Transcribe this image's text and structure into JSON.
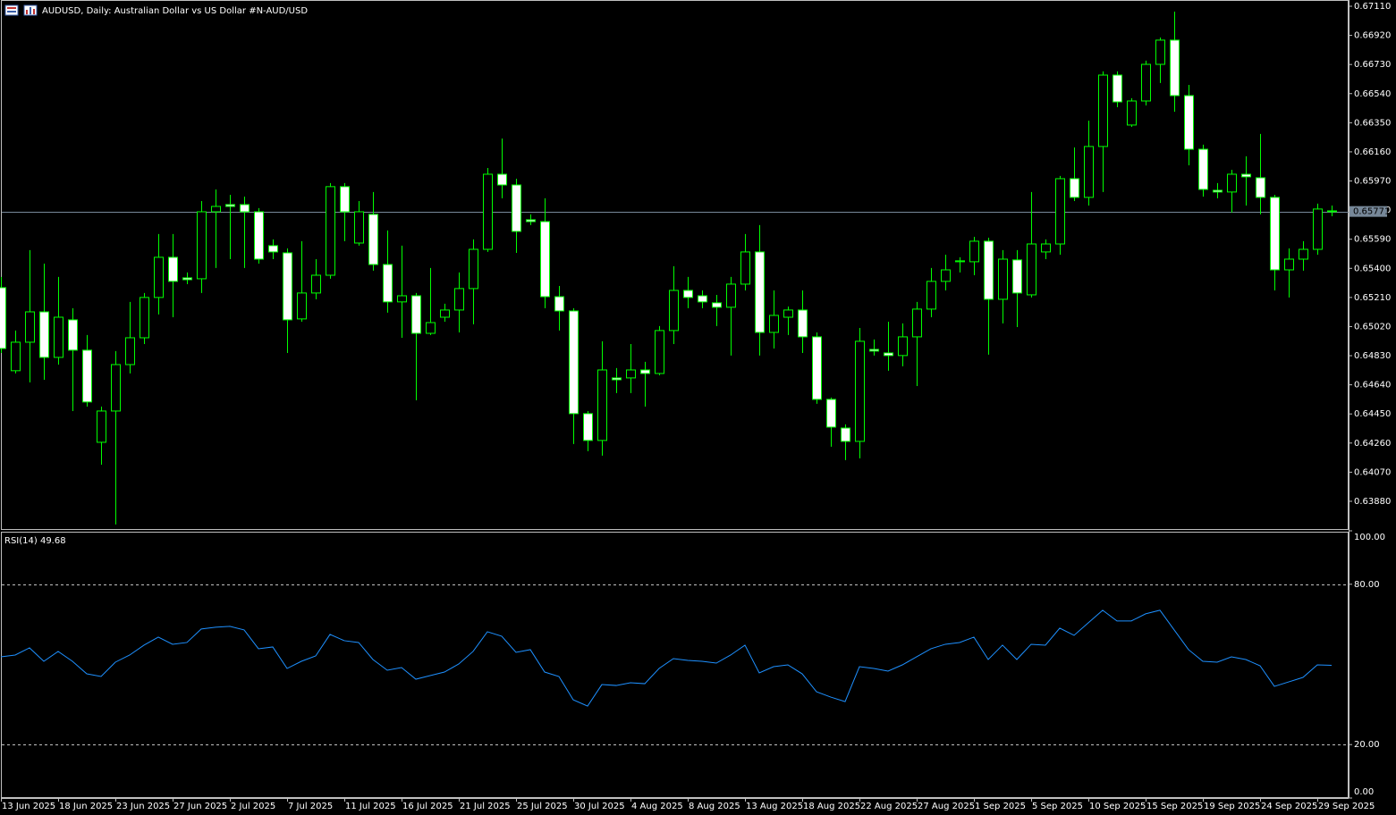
{
  "chart_data": {
    "type": "candlestick",
    "title": "AUDUSD, Daily:  Australian Dollar vs US Dollar #N-AUD/USD",
    "categories": [
      "13 Jun 2025",
      null,
      null,
      null,
      "18 Jun 2025",
      null,
      null,
      null,
      "23 Jun 2025",
      null,
      null,
      null,
      "27 Jun 2025",
      null,
      null,
      null,
      "2 Jul 2025",
      null,
      null,
      null,
      "7 Jul 2025",
      null,
      null,
      null,
      "11 Jul 2025",
      null,
      null,
      null,
      "16 Jul 2025",
      null,
      null,
      null,
      "21 Jul 2025",
      null,
      null,
      null,
      "25 Jul 2025",
      null,
      null,
      null,
      "30 Jul 2025",
      null,
      null,
      null,
      "4 Aug 2025",
      null,
      null,
      null,
      "8 Aug 2025",
      null,
      null,
      null,
      "13 Aug 2025",
      null,
      null,
      null,
      "18 Aug 2025",
      null,
      null,
      null,
      "22 Aug 2025",
      null,
      null,
      null,
      "27 Aug 2025",
      null,
      null,
      null,
      "1 Sep 2025",
      null,
      null,
      null,
      "5 Sep 2025",
      null,
      null,
      null,
      "10 Sep 2025",
      null,
      null,
      null,
      "15 Sep 2025",
      null,
      null,
      null,
      "19 Sep 2025",
      null,
      null,
      null,
      "24 Sep 2025",
      null,
      null,
      null,
      "29 Sep 2025",
      null
    ],
    "open": [
      0.65274,
      0.64732,
      0.64918,
      0.65116,
      0.64819,
      0.65064,
      0.64866,
      0.64265,
      0.64469,
      0.64772,
      0.64947,
      0.6521,
      0.65472,
      0.65338,
      0.65332,
      0.65769,
      0.65816,
      0.65816,
      0.65769,
      0.65548,
      0.65501,
      0.6507,
      0.65239,
      0.65355,
      0.65933,
      0.65565,
      0.65752,
      0.65425,
      0.65181,
      0.65221,
      0.64976,
      0.65081,
      0.65128,
      0.65268,
      0.65524,
      0.66014,
      0.65944,
      0.65717,
      0.65705,
      0.65215,
      0.65122,
      0.64452,
      0.64277,
      0.64685,
      0.64685,
      0.64737,
      0.64714,
      0.64994,
      0.65256,
      0.65221,
      0.65175,
      0.65146,
      0.65297,
      0.65507,
      0.64982,
      0.65081,
      0.65128,
      0.64953,
      0.64545,
      0.64358,
      0.64271,
      0.64871,
      0.64848,
      0.64831,
      0.64953,
      0.65134,
      0.65315,
      0.65443,
      0.65443,
      0.65577,
      0.65198,
      0.65455,
      0.65227,
      0.65507,
      0.65559,
      0.65985,
      0.65863,
      0.66195,
      0.66661,
      0.66335,
      0.66492,
      0.66731,
      0.66889,
      0.66527,
      0.66177,
      0.65909,
      0.65898,
      0.66014,
      0.65991,
      0.65863,
      0.6539,
      0.6546,
      0.65524,
      0.65775
    ],
    "high": [
      0.65344,
      0.64994,
      0.65519,
      0.65431,
      0.65344,
      0.6514,
      0.64965,
      0.64498,
      0.6486,
      0.65181,
      0.65239,
      0.65624,
      0.65624,
      0.65373,
      0.65839,
      0.65915,
      0.6588,
      0.65868,
      0.65793,
      0.65589,
      0.6553,
      0.65577,
      0.6546,
      0.65956,
      0.65956,
      0.65839,
      0.65898,
      0.65647,
      0.65548,
      0.65239,
      0.65402,
      0.65169,
      0.65373,
      0.65589,
      0.66055,
      0.66247,
      0.65985,
      0.65752,
      0.65857,
      0.65285,
      0.6514,
      0.64469,
      0.64924,
      0.64749,
      0.64906,
      0.6479,
      0.65023,
      0.65414,
      0.65344,
      0.65256,
      0.65227,
      0.65344,
      0.65624,
      0.65682,
      0.65256,
      0.65151,
      0.65256,
      0.64982,
      0.64557,
      0.64382,
      0.65011,
      0.64936,
      0.65052,
      0.65041,
      0.65181,
      0.65402,
      0.65489,
      0.65472,
      0.65606,
      0.656,
      0.65519,
      0.65519,
      0.65898,
      0.65589,
      0.66003,
      0.66189,
      0.66364,
      0.66685,
      0.66685,
      0.6651,
      0.66755,
      0.66906,
      0.67075,
      0.66597,
      0.66207,
      0.65956,
      0.66043,
      0.66131,
      0.66277,
      0.6588,
      0.6553,
      0.65577,
      0.65822,
      0.6581
    ],
    "low": [
      0.64848,
      0.64714,
      0.64656,
      0.64673,
      0.64772,
      0.64469,
      0.64498,
      0.64119,
      0.63729,
      0.64714,
      0.64906,
      0.65099,
      0.65081,
      0.65297,
      0.65239,
      0.65402,
      0.6546,
      0.65402,
      0.65431,
      0.6546,
      0.64848,
      0.65052,
      0.65198,
      0.65332,
      0.65577,
      0.65548,
      0.65385,
      0.65111,
      0.64947,
      0.64539,
      0.64965,
      0.65052,
      0.64982,
      0.65035,
      0.65507,
      0.65857,
      0.65501,
      0.65682,
      0.6514,
      0.64994,
      0.64254,
      0.64207,
      0.64178,
      0.64586,
      0.64586,
      0.64498,
      0.64702,
      0.64906,
      0.6514,
      0.6514,
      0.65023,
      0.64831,
      0.65256,
      0.64831,
      0.64877,
      0.64965,
      0.64848,
      0.64516,
      0.64236,
      0.64149,
      0.6416,
      0.64831,
      0.64732,
      0.64761,
      0.64632,
      0.65081,
      0.65256,
      0.65373,
      0.65355,
      0.64837,
      0.65041,
      0.65017,
      0.6521,
      0.6546,
      0.65489,
      0.65839,
      0.6581,
      0.65898,
      0.66451,
      0.66323,
      0.66463,
      0.66609,
      0.66422,
      0.66072,
      0.65868,
      0.65857,
      0.65764,
      0.6581,
      0.65752,
      0.65256,
      0.6521,
      0.65385,
      0.65489,
      0.6574
    ],
    "close": [
      0.64877,
      0.64918,
      0.65116,
      0.64819,
      0.65081,
      0.64866,
      0.64528,
      0.64469,
      0.64772,
      0.64947,
      0.6521,
      0.65472,
      0.65315,
      0.65326,
      0.65769,
      0.65804,
      0.65804,
      0.65769,
      0.6546,
      0.65507,
      0.65064,
      0.65239,
      0.65355,
      0.65933,
      0.65769,
      0.65769,
      0.65425,
      0.65181,
      0.65221,
      0.64976,
      0.65046,
      0.65128,
      0.65268,
      0.65524,
      0.66014,
      0.65944,
      0.65641,
      0.65705,
      0.65215,
      0.65122,
      0.64452,
      0.64277,
      0.64737,
      0.64673,
      0.64737,
      0.64714,
      0.64994,
      0.65256,
      0.6521,
      0.65181,
      0.65146,
      0.65297,
      0.65507,
      0.64982,
      0.65093,
      0.65128,
      0.64953,
      0.64545,
      0.64364,
      0.64271,
      0.64924,
      0.6486,
      0.64831,
      0.64953,
      0.65134,
      0.65315,
      0.6539,
      0.65449,
      0.65577,
      0.65198,
      0.6546,
      0.65239,
      0.65559,
      0.65559,
      0.65985,
      0.65863,
      0.66195,
      0.66661,
      0.66486,
      0.66492,
      0.66731,
      0.66889,
      0.66527,
      0.66177,
      0.65915,
      0.65898,
      0.66014,
      0.65997,
      0.65863,
      0.6539,
      0.6546,
      0.65524,
      0.65787,
      0.65771
    ],
    "up_color": "#000000",
    "down_color": "#ffffff",
    "outline_color": "#00ff00",
    "ylim": [
      0.63699,
      0.67145
    ],
    "yticks": [
      {
        "value": 0.6711,
        "label": "0.67110"
      },
      {
        "value": 0.6692,
        "label": "0.66920"
      },
      {
        "value": 0.6673,
        "label": "0.66730"
      },
      {
        "value": 0.6654,
        "label": "0.66540"
      },
      {
        "value": 0.6635,
        "label": "0.66350"
      },
      {
        "value": 0.6616,
        "label": "0.66160"
      },
      {
        "value": 0.6597,
        "label": "0.65970"
      },
      {
        "value": 0.6578,
        "label": "0.65780"
      },
      {
        "value": 0.6559,
        "label": "0.65590"
      },
      {
        "value": 0.654,
        "label": "0.65400"
      },
      {
        "value": 0.6521,
        "label": "0.65210"
      },
      {
        "value": 0.6502,
        "label": "0.65020"
      },
      {
        "value": 0.6483,
        "label": "0.64830"
      },
      {
        "value": 0.6464,
        "label": "0.64640"
      },
      {
        "value": 0.6445,
        "label": "0.64450"
      },
      {
        "value": 0.6426,
        "label": "0.64260"
      },
      {
        "value": 0.6407,
        "label": "0.64070"
      },
      {
        "value": 0.6388,
        "label": "0.63880"
      }
    ],
    "current_price": {
      "value": 0.65771,
      "label": "0.65771"
    },
    "current_price_color": "#778899",
    "rsi": {
      "label": "RSI(14) 49.68",
      "color": "#1e90ff",
      "values": [
        52.85,
        53.52,
        56.2,
        51.17,
        54.86,
        51.17,
        46.48,
        45.48,
        50.84,
        53.52,
        57.21,
        60.22,
        57.54,
        58.21,
        63.24,
        63.91,
        64.25,
        62.91,
        55.87,
        56.54,
        48.49,
        51.17,
        53.18,
        61.23,
        58.88,
        58.21,
        51.84,
        47.82,
        48.83,
        44.47,
        45.81,
        47.15,
        50.17,
        54.86,
        62.24,
        60.56,
        54.53,
        55.53,
        47.15,
        45.48,
        36.76,
        34.41,
        42.46,
        42.12,
        43.13,
        42.79,
        48.49,
        52.18,
        51.51,
        51.17,
        50.5,
        53.52,
        57.21,
        46.82,
        49.16,
        49.83,
        46.48,
        39.78,
        37.77,
        36.09,
        49.16,
        48.49,
        47.49,
        49.83,
        52.85,
        55.87,
        57.54,
        58.21,
        60.22,
        51.84,
        57.21,
        51.84,
        57.54,
        57.21,
        63.58,
        60.89,
        65.59,
        70.28,
        66.26,
        66.26,
        68.94,
        70.28,
        62.91,
        55.53,
        51.17,
        50.84,
        52.85,
        51.84,
        49.5,
        41.79,
        43.46,
        45.14,
        49.83,
        49.68
      ],
      "ylim": [
        0,
        100
      ],
      "yticks": [
        {
          "value": 100,
          "label": "100.00"
        },
        {
          "value": 80,
          "label": "80.00"
        },
        {
          "value": 20,
          "label": "20.00"
        },
        {
          "value": 0,
          "label": "0.00"
        }
      ],
      "levels": [
        80,
        20
      ]
    }
  }
}
